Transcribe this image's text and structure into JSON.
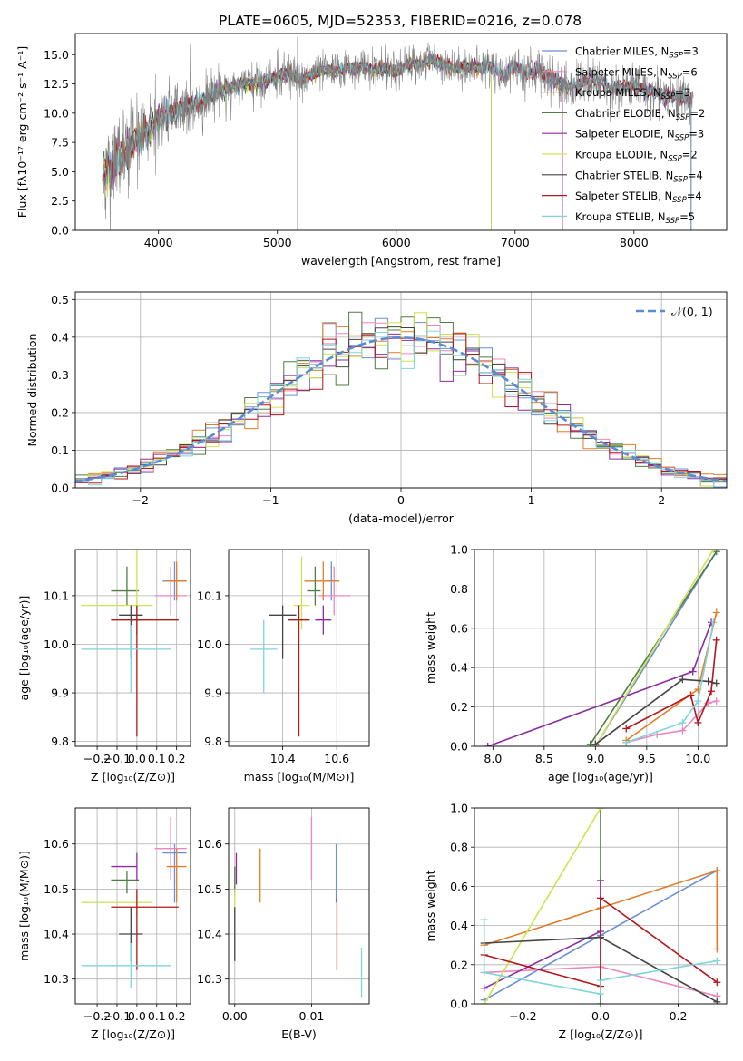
{
  "figure_title": "PLATE=0605, MJD=52353, FIBERID=0216, z=0.078",
  "colors": {
    "Chabrier MILES": "#6b8fd6",
    "Salpeter MILES": "#ec86c0",
    "Kroupa MILES": "#e07f2a",
    "Chabrier ELODIE": "#4f7d45",
    "Salpeter ELODIE": "#8e2ba2",
    "Kroupa ELODIE": "#cde24f",
    "Chabrier STELIB": "#444444",
    "Salpeter STELIB": "#b3161b",
    "Kroupa STELIB": "#7fd5d8"
  },
  "models": [
    "Chabrier MILES",
    "Salpeter MILES",
    "Kroupa MILES",
    "Chabrier ELODIE",
    "Salpeter ELODIE",
    "Kroupa ELODIE",
    "Chabrier STELIB",
    "Salpeter STELIB",
    "Kroupa STELIB"
  ],
  "legend_spectrum": [
    {
      "text": "Chabrier MILES, N",
      "sub": "SSP",
      "suffix": "=3"
    },
    {
      "text": "Salpeter MILES, N",
      "sub": "SSP",
      "suffix": "=6"
    },
    {
      "text": "Kroupa MILES, N",
      "sub": "SSP",
      "suffix": "=3"
    },
    {
      "text": "Chabrier ELODIE, N",
      "sub": "SSP",
      "suffix": "=2"
    },
    {
      "text": "Salpeter ELODIE, N",
      "sub": "SSP",
      "suffix": "=3"
    },
    {
      "text": "Kroupa ELODIE, N",
      "sub": "SSP",
      "suffix": "=2"
    },
    {
      "text": "Chabrier STELIB, N",
      "sub": "SSP",
      "suffix": "=4"
    },
    {
      "text": "Salpeter STELIB, N",
      "sub": "SSP",
      "suffix": "=4"
    },
    {
      "text": "Kroupa STELIB, N",
      "sub": "SSP",
      "suffix": "=5"
    }
  ],
  "legend_residual": "𝒩(0, 1)",
  "chart_data": [
    {
      "id": "spectrum",
      "type": "line",
      "ylabel": "Flux [fλ10⁻¹⁷ erg cm⁻² s⁻¹ A⁻¹]",
      "xlabel": "wavelength [Angstrom, rest frame]",
      "xlim": [
        3300,
        8780
      ],
      "ylim": [
        0,
        16.8
      ],
      "xticks": [
        4000,
        5000,
        6000,
        7000,
        8000
      ],
      "yticks": [
        0.0,
        2.5,
        5.0,
        7.5,
        10.0,
        12.5,
        15.0
      ],
      "x": [
        3530,
        3600,
        3700,
        3800,
        3900,
        4000,
        4100,
        4200,
        4300,
        4400,
        4500,
        4600,
        4700,
        4800,
        4900,
        5000,
        5100,
        5200,
        5300,
        5400,
        5500,
        5600,
        5700,
        5800,
        5900,
        6000,
        6100,
        6200,
        6300,
        6400,
        6500,
        6600,
        6700,
        6800,
        6900,
        7000,
        7100,
        7200,
        7300,
        7400,
        7500,
        7600,
        7700,
        7800,
        7900,
        8000,
        8100,
        8200,
        8300,
        8400,
        8500
      ],
      "model_flux": [
        4.6,
        5.4,
        6.4,
        7.6,
        8.6,
        9.6,
        9.9,
        10.4,
        10.7,
        11.2,
        11.9,
        12.1,
        12.5,
        12.6,
        12.7,
        13.1,
        13.4,
        12.8,
        13.4,
        13.7,
        13.6,
        13.9,
        14.0,
        13.7,
        13.8,
        13.5,
        14.1,
        14.2,
        14.6,
        14.2,
        13.8,
        14.0,
        13.9,
        14.0,
        13.2,
        14.0,
        13.3,
        13.7,
        13.0,
        12.4,
        12.3,
        12.8,
        12.6,
        12.2,
        12.2,
        12.3,
        11.9,
        11.7,
        11.6,
        11.3,
        11.1
      ],
      "data_noise": [
        2.8,
        2.6,
        2.2,
        1.9,
        1.7,
        1.5,
        1.4,
        1.3,
        1.2,
        1.1,
        1.0,
        1.0,
        0.9,
        0.9,
        0.9,
        0.9,
        0.9,
        0.9,
        0.8,
        0.8,
        0.8,
        0.8,
        0.8,
        0.8,
        0.8,
        0.8,
        0.8,
        0.8,
        0.8,
        0.8,
        0.8,
        0.8,
        0.8,
        0.9,
        0.9,
        0.9,
        0.9,
        1.0,
        1.0,
        1.0,
        1.0,
        1.0,
        1.0,
        1.0,
        1.0,
        1.0,
        1.0,
        1.0,
        1.0,
        1.0,
        1.0
      ]
    },
    {
      "id": "residuals",
      "type": "histogram",
      "xlabel": "(data-model)/error",
      "ylabel": "Normed distribution",
      "xlim": [
        -2.5,
        2.5
      ],
      "ylim": [
        0,
        0.52
      ],
      "xticks": [
        -2,
        -1,
        0,
        1,
        2
      ],
      "yticks": [
        0.0,
        0.1,
        0.2,
        0.3,
        0.4,
        0.5
      ],
      "bin_width": 0.1,
      "gaussian": {
        "mean": 0,
        "sigma": 1
      }
    },
    {
      "id": "age_vs_Z",
      "type": "scatter",
      "xlabel": "Z [log₁₀(Z/Z⊙)]",
      "ylabel": "age  [log₁₀(age/yr)]",
      "xlim": [
        -0.31,
        0.27
      ],
      "ylim": [
        9.79,
        10.195
      ],
      "xticks": [
        -0.2,
        -0.1,
        0.0,
        0.1,
        0.2
      ],
      "yticks": [
        9.8,
        9.9,
        10.0,
        10.1
      ],
      "points": [
        {
          "model": "Chabrier MILES",
          "x": 0.19,
          "xerr": [
            0.06,
            0.06
          ],
          "y": 10.13,
          "yerr": [
            0.04,
            0.04
          ]
        },
        {
          "model": "Salpeter MILES",
          "x": 0.17,
          "xerr": [
            0.08,
            0.08
          ],
          "y": 10.1,
          "yerr": [
            0.04,
            0.06
          ]
        },
        {
          "model": "Kroupa MILES",
          "x": 0.2,
          "xerr": [
            0.05,
            0.05
          ],
          "y": 10.13,
          "yerr": [
            0.04,
            0.04
          ]
        },
        {
          "model": "Chabrier ELODIE",
          "x": -0.05,
          "xerr": [
            0.08,
            0.06
          ],
          "y": 10.11,
          "yerr": [
            0.03,
            0.05
          ]
        },
        {
          "model": "Salpeter ELODIE",
          "x": 0.0,
          "xerr": [
            0.03,
            0.03
          ],
          "y": 10.05,
          "yerr": [
            0.03,
            0.03
          ]
        },
        {
          "model": "Kroupa ELODIE",
          "x": 0.0,
          "xerr": [
            0.28,
            0.08
          ],
          "y": 10.08,
          "yerr": [
            0.05,
            0.13
          ]
        },
        {
          "model": "Chabrier STELIB",
          "x": -0.03,
          "xerr": [
            0.06,
            0.06
          ],
          "y": 10.06,
          "yerr": [
            0.09,
            0.02
          ]
        },
        {
          "model": "Salpeter STELIB",
          "x": 0.0,
          "xerr": [
            0.13,
            0.21
          ],
          "y": 10.05,
          "yerr": [
            0.24,
            0.03
          ]
        },
        {
          "model": "Kroupa STELIB",
          "x": -0.03,
          "xerr": [
            0.25,
            0.2
          ],
          "y": 9.99,
          "yerr": [
            0.09,
            0.05
          ]
        }
      ]
    },
    {
      "id": "age_vs_mass",
      "type": "scatter",
      "xlabel": "mass [log₁₀(M/M⊙)]",
      "ylabel": "",
      "xlim": [
        10.2,
        10.72
      ],
      "ylim": [
        9.79,
        10.195
      ],
      "xticks": [
        10.4,
        10.6
      ],
      "yticks": [
        9.8,
        9.9,
        10.0,
        10.1
      ],
      "points": [
        {
          "model": "Chabrier MILES",
          "x": 10.58,
          "xerr": [
            0.02,
            0.02
          ],
          "y": 10.13,
          "yerr": [
            0.04,
            0.04
          ]
        },
        {
          "model": "Salpeter MILES",
          "x": 10.59,
          "xerr": [
            0.06,
            0.06
          ],
          "y": 10.1,
          "yerr": [
            0.04,
            0.06
          ]
        },
        {
          "model": "Kroupa MILES",
          "x": 10.55,
          "xerr": [
            0.07,
            0.06
          ],
          "y": 10.13,
          "yerr": [
            0.04,
            0.04
          ]
        },
        {
          "model": "Chabrier ELODIE",
          "x": 10.52,
          "xerr": [
            0.03,
            0.02
          ],
          "y": 10.11,
          "yerr": [
            0.03,
            0.05
          ]
        },
        {
          "model": "Salpeter ELODIE",
          "x": 10.55,
          "xerr": [
            0.03,
            0.03
          ],
          "y": 10.05,
          "yerr": [
            0.03,
            0.03
          ]
        },
        {
          "model": "Kroupa ELODIE",
          "x": 10.47,
          "xerr": [
            0.03,
            0.03
          ],
          "y": 10.08,
          "yerr": [
            0.05,
            0.1
          ]
        },
        {
          "model": "Chabrier STELIB",
          "x": 10.4,
          "xerr": [
            0.05,
            0.05
          ],
          "y": 10.06,
          "yerr": [
            0.09,
            0.02
          ]
        },
        {
          "model": "Salpeter STELIB",
          "x": 10.46,
          "xerr": [
            0.04,
            0.04
          ],
          "y": 10.05,
          "yerr": [
            0.24,
            0.03
          ]
        },
        {
          "model": "Kroupa STELIB",
          "x": 10.33,
          "xerr": [
            0.05,
            0.05
          ],
          "y": 9.99,
          "yerr": [
            0.09,
            0.06
          ]
        }
      ]
    },
    {
      "id": "weight_vs_age",
      "type": "line",
      "xlabel": "age  [log₁₀(age/yr)]",
      "ylabel": "mass weight",
      "xlim": [
        7.82,
        10.28
      ],
      "ylim": [
        0,
        1.0
      ],
      "xticks": [
        8.0,
        8.5,
        9.0,
        9.5,
        10.0
      ],
      "yticks": [
        0.0,
        0.2,
        0.4,
        0.6,
        0.8,
        1.0
      ],
      "series": [
        {
          "model": "Chabrier MILES",
          "x": [
            9.0,
            10.18
          ],
          "y": [
            0.0,
            0.99
          ]
        },
        {
          "model": "Salpeter MILES",
          "x": [
            9.3,
            9.6,
            9.85,
            10.1,
            10.18
          ],
          "y": [
            0.02,
            0.06,
            0.08,
            0.22,
            0.23
          ]
        },
        {
          "model": "Kroupa MILES",
          "x": [
            9.3,
            10.0,
            10.18
          ],
          "y": [
            0.03,
            0.29,
            0.68
          ]
        },
        {
          "model": "Chabrier ELODIE",
          "x": [
            8.95,
            10.18
          ],
          "y": [
            0.01,
            0.99
          ]
        },
        {
          "model": "Salpeter ELODIE",
          "x": [
            7.95,
            9.95,
            10.13
          ],
          "y": [
            0.0,
            0.38,
            0.63
          ]
        },
        {
          "model": "Kroupa ELODIE",
          "x": [
            9.0,
            10.15
          ],
          "y": [
            0.0,
            1.0
          ]
        },
        {
          "model": "Chabrier STELIB",
          "x": [
            9.0,
            9.85,
            10.1,
            10.18
          ],
          "y": [
            0.01,
            0.34,
            0.33,
            0.32
          ]
        },
        {
          "model": "Salpeter STELIB",
          "x": [
            9.3,
            9.93,
            10.0,
            10.13,
            10.18
          ],
          "y": [
            0.09,
            0.26,
            0.12,
            0.28,
            0.54
          ]
        },
        {
          "model": "Kroupa STELIB",
          "x": [
            9.3,
            9.85,
            10.0,
            10.15
          ],
          "y": [
            0.02,
            0.12,
            0.23,
            0.63
          ]
        }
      ]
    },
    {
      "id": "mass_vs_Z",
      "type": "scatter",
      "xlabel": "Z [log₁₀(Z/Z⊙)]",
      "ylabel": "mass [log₁₀(M/M⊙)]",
      "xlim": [
        -0.31,
        0.27
      ],
      "ylim": [
        10.245,
        10.68
      ],
      "xticks": [
        -0.2,
        -0.1,
        0.0,
        0.1,
        0.2
      ],
      "yticks": [
        10.3,
        10.4,
        10.5,
        10.6
      ],
      "points": [
        {
          "model": "Chabrier MILES",
          "x": 0.19,
          "xerr": [
            0.06,
            0.06
          ],
          "y": 10.58,
          "yerr": [
            0.11,
            0.02
          ]
        },
        {
          "model": "Salpeter MILES",
          "x": 0.17,
          "xerr": [
            0.08,
            0.08
          ],
          "y": 10.59,
          "yerr": [
            0.07,
            0.07
          ]
        },
        {
          "model": "Kroupa MILES",
          "x": 0.2,
          "xerr": [
            0.05,
            0.05
          ],
          "y": 10.55,
          "yerr": [
            0.08,
            0.04
          ]
        },
        {
          "model": "Chabrier ELODIE",
          "x": -0.05,
          "xerr": [
            0.08,
            0.06
          ],
          "y": 10.52,
          "yerr": [
            0.03,
            0.02
          ]
        },
        {
          "model": "Salpeter ELODIE",
          "x": 0.0,
          "xerr": [
            0.13,
            0.0
          ],
          "y": 10.55,
          "yerr": [
            0.03,
            0.03
          ]
        },
        {
          "model": "Kroupa ELODIE",
          "x": 0.0,
          "xerr": [
            0.28,
            0.08
          ],
          "y": 10.47,
          "yerr": [
            0.03,
            0.03
          ]
        },
        {
          "model": "Chabrier STELIB",
          "x": -0.03,
          "xerr": [
            0.06,
            0.06
          ],
          "y": 10.4,
          "yerr": [
            0.06,
            0.06
          ]
        },
        {
          "model": "Salpeter STELIB",
          "x": 0.0,
          "xerr": [
            0.13,
            0.21
          ],
          "y": 10.46,
          "yerr": [
            0.14,
            0.04
          ]
        },
        {
          "model": "Kroupa STELIB",
          "x": -0.03,
          "xerr": [
            0.25,
            0.2
          ],
          "y": 10.33,
          "yerr": [
            0.05,
            0.05
          ]
        }
      ]
    },
    {
      "id": "mass_vs_ebv",
      "type": "scatter",
      "xlabel": "E(B-V)",
      "ylabel": "",
      "xlim": [
        -0.0008,
        0.0175
      ],
      "ylim": [
        10.245,
        10.68
      ],
      "xticks": [
        0.0,
        0.01
      ],
      "yticks": [
        10.3,
        10.4,
        10.5,
        10.6
      ],
      "points": [
        {
          "model": "Chabrier MILES",
          "x": 0.0132,
          "xerr": [
            0,
            0
          ],
          "y": 10.55,
          "yerr": [
            0.08,
            0.05
          ]
        },
        {
          "model": "Salpeter MILES",
          "x": 0.01,
          "xerr": [
            0,
            0
          ],
          "y": 10.59,
          "yerr": [
            0.07,
            0.07
          ]
        },
        {
          "model": "Kroupa MILES",
          "x": 0.0033,
          "xerr": [
            0,
            0
          ],
          "y": 10.53,
          "yerr": [
            0.06,
            0.06
          ]
        },
        {
          "model": "Chabrier ELODIE",
          "x": 0.0,
          "xerr": [
            0,
            0
          ],
          "y": 10.52,
          "yerr": [
            0.03,
            0.03
          ]
        },
        {
          "model": "Salpeter ELODIE",
          "x": 0.0002,
          "xerr": [
            0,
            0
          ],
          "y": 10.55,
          "yerr": [
            0.04,
            0.03
          ]
        },
        {
          "model": "Kroupa ELODIE",
          "x": 0.0,
          "xerr": [
            0,
            0
          ],
          "y": 10.47,
          "yerr": [
            0.03,
            0.03
          ]
        },
        {
          "model": "Chabrier STELIB",
          "x": 0.0,
          "xerr": [
            0,
            0
          ],
          "y": 10.4,
          "yerr": [
            0.06,
            0.06
          ]
        },
        {
          "model": "Salpeter STELIB",
          "x": 0.0133,
          "xerr": [
            0,
            0
          ],
          "y": 10.4,
          "yerr": [
            0.08,
            0.08
          ]
        },
        {
          "model": "Kroupa STELIB",
          "x": 0.0165,
          "xerr": [
            0,
            0
          ],
          "y": 10.31,
          "yerr": [
            0.05,
            0.06
          ]
        }
      ]
    },
    {
      "id": "weight_vs_Z",
      "type": "line",
      "xlabel": "Z [log₁₀(Z/Z⊙)]",
      "ylabel": "mass weight",
      "xlim": [
        -0.325,
        0.325
      ],
      "ylim": [
        0,
        1.0
      ],
      "xticks": [
        -0.2,
        0.0,
        0.2
      ],
      "yticks": [
        0.0,
        0.2,
        0.4,
        0.6,
        0.8,
        1.0
      ],
      "series": [
        {
          "model": "Chabrier MILES",
          "x": [
            -0.3,
            0.0,
            0.3
          ],
          "y": [
            0.02,
            0.35,
            0.68
          ]
        },
        {
          "model": "Salpeter MILES",
          "x": [
            -0.3,
            0.0,
            0.3
          ],
          "y": [
            0.16,
            0.19,
            0.04
          ]
        },
        {
          "model": "Kroupa MILES",
          "x": [
            -0.3,
            0.0,
            0.3,
            0.3
          ],
          "y": [
            0.3,
            0.49,
            0.68,
            0.28
          ]
        },
        {
          "model": "Chabrier ELODIE",
          "x": [
            0.0,
            0.0
          ],
          "y": [
            0.0,
            1.0
          ]
        },
        {
          "model": "Salpeter ELODIE",
          "x": [
            -0.3,
            0.0,
            0.0
          ],
          "y": [
            0.08,
            0.37,
            0.63
          ]
        },
        {
          "model": "Kroupa ELODIE",
          "x": [
            -0.3,
            0.0
          ],
          "y": [
            0.0,
            1.0
          ]
        },
        {
          "model": "Chabrier STELIB",
          "x": [
            -0.3,
            0.0,
            0.3
          ],
          "y": [
            0.31,
            0.34,
            0.01
          ]
        },
        {
          "model": "Salpeter STELIB",
          "x": [
            -0.3,
            0.0,
            0.0,
            0.3
          ],
          "y": [
            0.25,
            0.09,
            0.54,
            0.11
          ]
        },
        {
          "model": "Kroupa STELIB",
          "x": [
            -0.3,
            -0.3,
            0.0,
            0.0,
            0.3
          ],
          "y": [
            0.43,
            0.16,
            0.05,
            0.12,
            0.22
          ]
        }
      ]
    }
  ]
}
